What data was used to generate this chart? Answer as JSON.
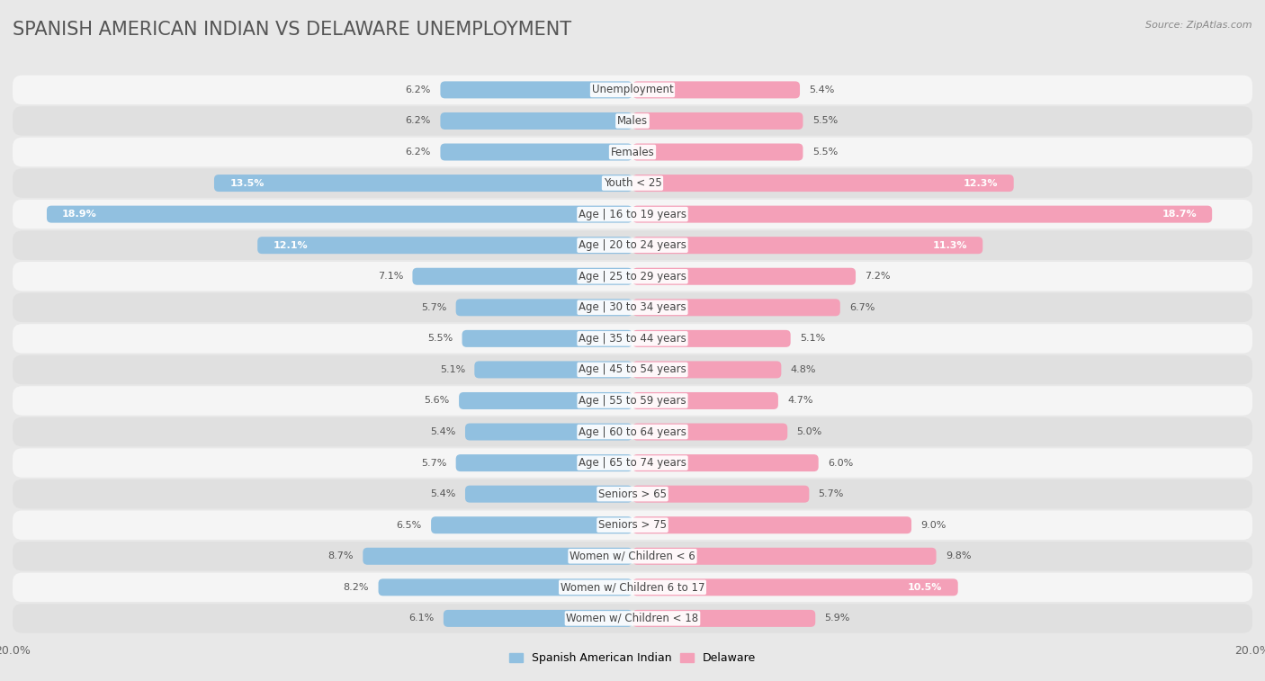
{
  "title": "SPANISH AMERICAN INDIAN VS DELAWARE UNEMPLOYMENT",
  "source": "Source: ZipAtlas.com",
  "categories": [
    "Unemployment",
    "Males",
    "Females",
    "Youth < 25",
    "Age | 16 to 19 years",
    "Age | 20 to 24 years",
    "Age | 25 to 29 years",
    "Age | 30 to 34 years",
    "Age | 35 to 44 years",
    "Age | 45 to 54 years",
    "Age | 55 to 59 years",
    "Age | 60 to 64 years",
    "Age | 65 to 74 years",
    "Seniors > 65",
    "Seniors > 75",
    "Women w/ Children < 6",
    "Women w/ Children 6 to 17",
    "Women w/ Children < 18"
  ],
  "left_values": [
    6.2,
    6.2,
    6.2,
    13.5,
    18.9,
    12.1,
    7.1,
    5.7,
    5.5,
    5.1,
    5.6,
    5.4,
    5.7,
    5.4,
    6.5,
    8.7,
    8.2,
    6.1
  ],
  "right_values": [
    5.4,
    5.5,
    5.5,
    12.3,
    18.7,
    11.3,
    7.2,
    6.7,
    5.1,
    4.8,
    4.7,
    5.0,
    6.0,
    5.7,
    9.0,
    9.8,
    10.5,
    5.9
  ],
  "left_color": "#91c0e0",
  "right_color": "#f4a0b8",
  "left_label": "Spanish American Indian",
  "right_label": "Delaware",
  "background_color": "#e8e8e8",
  "row_color_odd": "#f5f5f5",
  "row_color_even": "#e0e0e0",
  "max_val": 20.0,
  "title_fontsize": 15,
  "label_fontsize": 8.5,
  "value_fontsize": 8.0,
  "axis_label_fontsize": 9
}
